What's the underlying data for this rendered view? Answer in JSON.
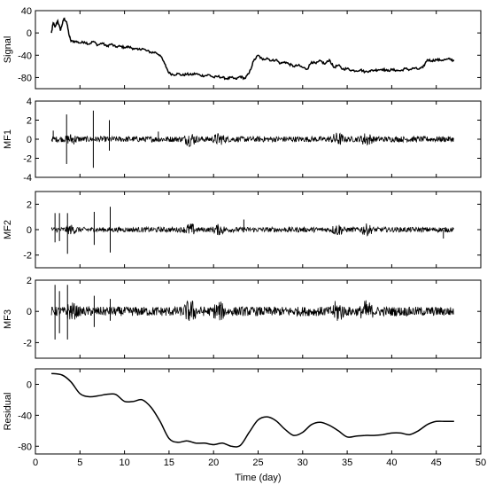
{
  "chart_data": [
    {
      "id": "signal",
      "type": "line",
      "ylabel": "Signal",
      "ylim": [
        -100,
        40
      ],
      "yticks": [
        -80,
        -40,
        0,
        40
      ],
      "xlim": [
        0,
        50
      ],
      "series": [
        {
          "kind": "step",
          "x": [
            1.8,
            2.0,
            2.2,
            2.5,
            2.8,
            3.0,
            3.2,
            3.5,
            3.8,
            4.0,
            4.5,
            5.0,
            5.5,
            6.0,
            6.5,
            7.0,
            7.5,
            8.0,
            8.5,
            9.0,
            9.5,
            10.0,
            10.5,
            11.0,
            11.5,
            12.0,
            12.5,
            13.0,
            13.5,
            14.0,
            14.5,
            15.0,
            15.5,
            16.0,
            16.5,
            17.0,
            17.5,
            18.0,
            18.5,
            19.0,
            19.5,
            20.0,
            20.5,
            21.0,
            21.5,
            22.0,
            22.5,
            23.0,
            23.5,
            24.0,
            24.5,
            25.0,
            25.5,
            26.0,
            26.5,
            27.0,
            27.5,
            28.0,
            28.5,
            29.0,
            29.5,
            30.0,
            30.5,
            31.0,
            31.5,
            32.0,
            32.5,
            33.0,
            33.5,
            34.0,
            34.5,
            35.0,
            35.5,
            36.0,
            36.5,
            37.0,
            37.5,
            38.0,
            38.5,
            39.0,
            39.5,
            40.0,
            40.5,
            41.0,
            41.5,
            42.0,
            42.5,
            43.0,
            43.5,
            44.0,
            44.5,
            45.0,
            45.5,
            46.0,
            46.5,
            47.0
          ],
          "y": [
            0,
            18,
            10,
            22,
            5,
            15,
            26,
            20,
            -5,
            -15,
            -15,
            -18,
            -16,
            -20,
            -15,
            -22,
            -18,
            -24,
            -20,
            -25,
            -24,
            -26,
            -25,
            -28,
            -30,
            -28,
            -32,
            -35,
            -35,
            -40,
            -55,
            -72,
            -75,
            -73,
            -76,
            -74,
            -75,
            -73,
            -76,
            -77,
            -75,
            -80,
            -78,
            -80,
            -82,
            -80,
            -83,
            -78,
            -82,
            -72,
            -50,
            -40,
            -48,
            -45,
            -50,
            -48,
            -55,
            -52,
            -56,
            -60,
            -58,
            -62,
            -65,
            -52,
            -55,
            -50,
            -56,
            -48,
            -62,
            -58,
            -65,
            -64,
            -67,
            -68,
            -66,
            -70,
            -68,
            -67,
            -66,
            -65,
            -68,
            -66,
            -67,
            -68,
            -64,
            -66,
            -63,
            -65,
            -62,
            -48,
            -50,
            -48,
            -49,
            -48,
            -47,
            -50
          ]
        }
      ]
    },
    {
      "id": "mf1",
      "type": "line",
      "ylabel": "MF1",
      "ylim": [
        -4,
        4
      ],
      "yticks": [
        -4,
        -2,
        0,
        2,
        4
      ],
      "xlim": [
        0,
        50
      ],
      "series": [
        {
          "kind": "oscillation",
          "base_amplitude": 0.3,
          "spikes": [
            [
              2.0,
              0.9
            ],
            [
              3.5,
              2.6
            ],
            [
              6.5,
              3.0
            ],
            [
              8.3,
              2.0
            ],
            [
              13.8,
              0.8
            ]
          ],
          "spikes_down": [
            [
              3.5,
              -2.6
            ],
            [
              6.5,
              -3.0
            ],
            [
              8.3,
              -1.2
            ]
          ]
        }
      ]
    },
    {
      "id": "mf2",
      "type": "line",
      "ylabel": "MF2",
      "ylim": [
        -3,
        3
      ],
      "yticks": [
        -2,
        0,
        2
      ],
      "xlim": [
        0,
        50
      ],
      "series": [
        {
          "kind": "oscillation",
          "base_amplitude": 0.2,
          "spikes": [
            [
              2.2,
              1.3
            ],
            [
              2.7,
              1.3
            ],
            [
              3.6,
              1.3
            ],
            [
              6.6,
              1.4
            ],
            [
              8.4,
              1.8
            ],
            [
              23.4,
              0.8
            ]
          ],
          "spikes_down": [
            [
              2.2,
              -1.0
            ],
            [
              2.7,
              -0.9
            ],
            [
              3.6,
              -1.9
            ],
            [
              6.6,
              -1.2
            ],
            [
              8.4,
              -1.8
            ],
            [
              45.8,
              -0.7
            ]
          ]
        }
      ]
    },
    {
      "id": "mf3",
      "type": "line",
      "ylabel": "MF3",
      "ylim": [
        -3,
        2
      ],
      "yticks": [
        -2,
        0,
        2
      ],
      "xlim": [
        0,
        50
      ],
      "series": [
        {
          "kind": "oscillation",
          "base_amplitude": 0.3,
          "spikes": [
            [
              2.2,
              1.7
            ],
            [
              2.7,
              1.3
            ],
            [
              3.6,
              1.7
            ],
            [
              6.6,
              1.0
            ],
            [
              8.4,
              0.8
            ]
          ],
          "spikes_down": [
            [
              2.2,
              -1.8
            ],
            [
              2.7,
              -1.4
            ],
            [
              3.6,
              -1.8
            ],
            [
              6.6,
              -1.0
            ],
            [
              8.4,
              -0.6
            ]
          ]
        }
      ]
    },
    {
      "id": "residual",
      "type": "line",
      "ylabel": "Residual",
      "xlabel": "Time (day)",
      "ylim": [
        -90,
        20
      ],
      "yticks": [
        -80,
        -40,
        0
      ],
      "xlim": [
        0,
        50
      ],
      "xticks": [
        0,
        5,
        10,
        15,
        20,
        25,
        30,
        35,
        40,
        45,
        50
      ],
      "series": [
        {
          "kind": "smooth",
          "x": [
            1.8,
            3,
            4,
            5,
            6,
            7,
            8,
            9,
            10,
            11,
            12,
            13,
            14,
            15,
            16,
            17,
            18,
            19,
            20,
            21,
            22,
            23,
            24,
            25,
            26,
            27,
            28,
            29,
            30,
            31,
            32,
            33,
            34,
            35,
            36,
            37,
            38,
            39,
            40,
            41,
            42,
            43,
            44,
            45,
            46,
            47
          ],
          "y": [
            14,
            12,
            3,
            -12,
            -16,
            -15,
            -13,
            -13,
            -22,
            -22,
            -20,
            -30,
            -48,
            -70,
            -75,
            -73,
            -76,
            -76,
            -78,
            -76,
            -80,
            -79,
            -62,
            -46,
            -42,
            -47,
            -58,
            -66,
            -62,
            -52,
            -49,
            -53,
            -60,
            -68,
            -67,
            -66,
            -66,
            -65,
            -63,
            -63,
            -65,
            -60,
            -52,
            -48,
            -48,
            -48
          ]
        }
      ]
    }
  ]
}
